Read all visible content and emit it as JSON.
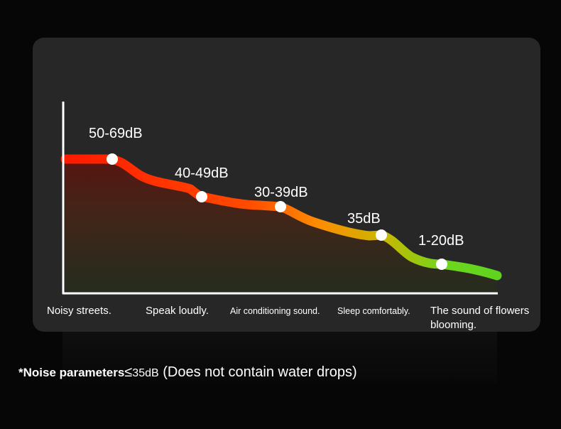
{
  "chart_data": {
    "type": "line",
    "categories": [
      "Noisy streets.",
      "Speak loudly.",
      "Air conditioning sound.",
      "Sleep comfortably.",
      "The sound of flowers blooming."
    ],
    "point_labels": [
      "50-69dB",
      "40-49dB",
      "30-39dB",
      "35dB",
      "1-20dB"
    ],
    "colors": {
      "high": "#ff1a00",
      "mid": "#ff8a00",
      "low_mid": "#c9b800",
      "low": "#6ed61e",
      "marker": "#ffffff",
      "axis": "#ffffff"
    },
    "grid": false,
    "legend": "none"
  },
  "footnote": {
    "bold_part": "*Noise parameters",
    "symbol": "≤",
    "value": "35dB",
    "rest": " (Does not contain water drops)"
  }
}
